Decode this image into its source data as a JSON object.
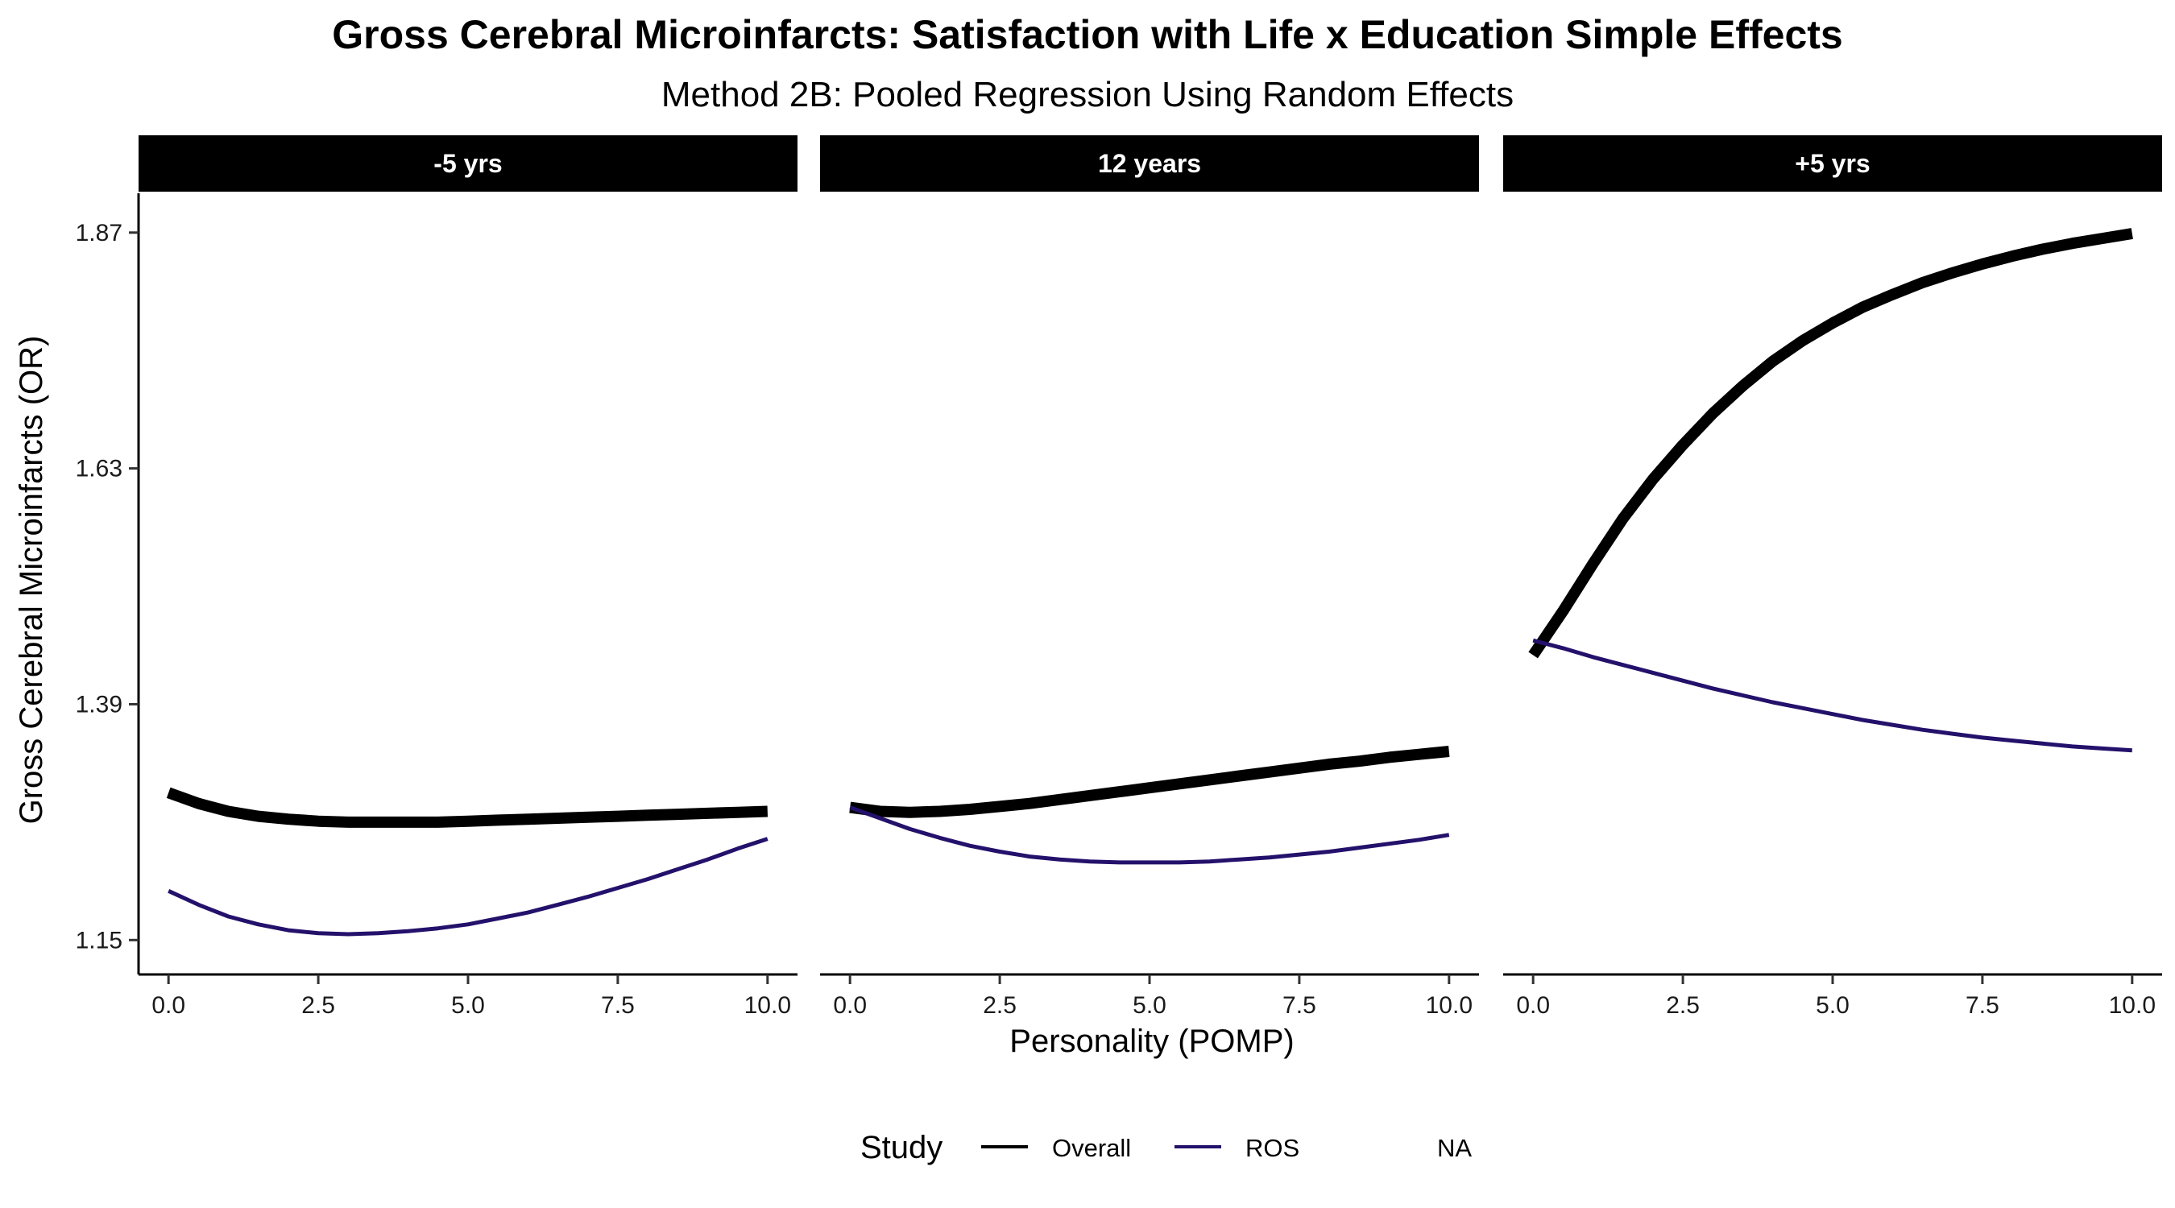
{
  "chart_data": {
    "type": "line",
    "title": "Gross Cerebral Microinfarcts: Satisfaction with Life x Education Simple Effects",
    "subtitle": "Method 2B: Pooled Regression Using Random Effects",
    "xlabel": "Personality (POMP)",
    "ylabel": "Gross Cerebral Microinfarcts (OR)",
    "xlim": [
      -0.5,
      10.5
    ],
    "ylim": [
      1.115,
      1.91
    ],
    "x_ticks": [
      "0.0",
      "2.5",
      "5.0",
      "7.5",
      "10.0"
    ],
    "y_ticks": [
      "1.15",
      "1.39",
      "1.63",
      "1.87"
    ],
    "grid": false,
    "legend": {
      "title": "Study",
      "position": "bottom",
      "entries": [
        {
          "label": "Overall",
          "color": "#000000"
        },
        {
          "label": "ROS",
          "color": "#24116b"
        },
        {
          "label": "NA",
          "color": ""
        }
      ]
    },
    "facets": [
      {
        "label": "-5 yrs",
        "series": [
          {
            "name": "Overall",
            "color": "#000000",
            "x": [
              0,
              0.5,
              1,
              1.5,
              2,
              2.5,
              3,
              3.5,
              4,
              4.5,
              5,
              5.5,
              6,
              6.5,
              7,
              7.5,
              8,
              8.5,
              9,
              9.5,
              10
            ],
            "y": [
              1.3,
              1.289,
              1.281,
              1.276,
              1.273,
              1.271,
              1.27,
              1.27,
              1.27,
              1.27,
              1.271,
              1.272,
              1.273,
              1.274,
              1.275,
              1.276,
              1.277,
              1.278,
              1.279,
              1.28,
              1.281
            ]
          },
          {
            "name": "ROS",
            "color": "#24116b",
            "x": [
              0,
              0.5,
              1,
              1.5,
              2,
              2.5,
              3,
              3.5,
              4,
              4.5,
              5,
              5.5,
              6,
              6.5,
              7,
              7.5,
              8,
              8.5,
              9,
              9.5,
              10
            ],
            "y": [
              1.2,
              1.186,
              1.174,
              1.166,
              1.16,
              1.157,
              1.156,
              1.157,
              1.159,
              1.162,
              1.166,
              1.172,
              1.178,
              1.186,
              1.194,
              1.203,
              1.212,
              1.222,
              1.232,
              1.243,
              1.253
            ]
          }
        ]
      },
      {
        "label": "12 years",
        "series": [
          {
            "name": "Overall",
            "color": "#000000",
            "x": [
              0,
              0.5,
              1,
              1.5,
              2,
              2.5,
              3,
              3.5,
              4,
              4.5,
              5,
              5.5,
              6,
              6.5,
              7,
              7.5,
              8,
              8.5,
              9,
              9.5,
              10
            ],
            "y": [
              1.285,
              1.281,
              1.28,
              1.281,
              1.283,
              1.286,
              1.289,
              1.293,
              1.297,
              1.301,
              1.305,
              1.309,
              1.313,
              1.317,
              1.321,
              1.325,
              1.329,
              1.332,
              1.336,
              1.339,
              1.342
            ]
          },
          {
            "name": "ROS",
            "color": "#24116b",
            "x": [
              0,
              0.5,
              1,
              1.5,
              2,
              2.5,
              3,
              3.5,
              4,
              4.5,
              5,
              5.5,
              6,
              6.5,
              7,
              7.5,
              8,
              8.5,
              9,
              9.5,
              10
            ],
            "y": [
              1.285,
              1.274,
              1.263,
              1.254,
              1.246,
              1.24,
              1.235,
              1.232,
              1.23,
              1.229,
              1.229,
              1.229,
              1.23,
              1.232,
              1.234,
              1.237,
              1.24,
              1.244,
              1.248,
              1.252,
              1.257
            ]
          }
        ]
      },
      {
        "label": "+5 yrs",
        "series": [
          {
            "name": "Overall",
            "color": "#000000",
            "x": [
              0,
              0.5,
              1,
              1.5,
              2,
              2.5,
              3,
              3.5,
              4,
              4.5,
              5,
              5.5,
              6,
              6.5,
              7,
              7.5,
              8,
              8.5,
              9,
              9.5,
              10
            ],
            "y": [
              1.44,
              1.485,
              1.533,
              1.579,
              1.619,
              1.654,
              1.686,
              1.714,
              1.739,
              1.76,
              1.778,
              1.794,
              1.807,
              1.819,
              1.829,
              1.838,
              1.846,
              1.853,
              1.859,
              1.864,
              1.869
            ]
          },
          {
            "name": "ROS",
            "color": "#24116b",
            "x": [
              0,
              0.5,
              1,
              1.5,
              2,
              2.5,
              3,
              3.5,
              4,
              4.5,
              5,
              5.5,
              6,
              6.5,
              7,
              7.5,
              8,
              8.5,
              9,
              9.5,
              10
            ],
            "y": [
              1.455,
              1.447,
              1.438,
              1.43,
              1.422,
              1.414,
              1.406,
              1.399,
              1.392,
              1.386,
              1.38,
              1.374,
              1.369,
              1.364,
              1.36,
              1.356,
              1.353,
              1.35,
              1.347,
              1.345,
              1.343
            ]
          }
        ]
      }
    ]
  }
}
